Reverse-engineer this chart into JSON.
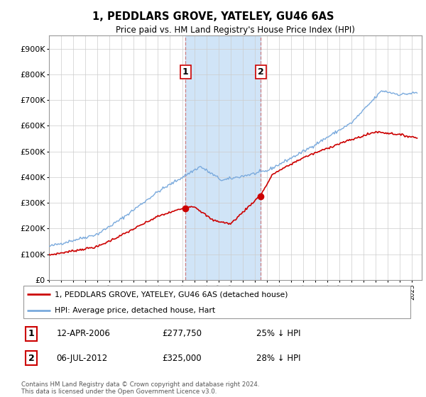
{
  "title": "1, PEDDLARS GROVE, YATELEY, GU46 6AS",
  "subtitle": "Price paid vs. HM Land Registry's House Price Index (HPI)",
  "ylabel_ticks": [
    "£0",
    "£100K",
    "£200K",
    "£300K",
    "£400K",
    "£500K",
    "£600K",
    "£700K",
    "£800K",
    "£900K"
  ],
  "ytick_values": [
    0,
    100000,
    200000,
    300000,
    400000,
    500000,
    600000,
    700000,
    800000,
    900000
  ],
  "ylim": [
    0,
    950000
  ],
  "xlim_start": 1995.0,
  "xlim_end": 2025.8,
  "sale1_date": 2006.28,
  "sale1_price": 277750,
  "sale2_date": 2012.5,
  "sale2_price": 325000,
  "shade_color": "#d0e4f7",
  "red_line_color": "#cc0000",
  "blue_line_color": "#7aaadd",
  "marker_color": "#cc0000",
  "legend_entries": [
    "1, PEDDLARS GROVE, YATELEY, GU46 6AS (detached house)",
    "HPI: Average price, detached house, Hart"
  ],
  "table_rows": [
    [
      "1",
      "12-APR-2006",
      "£277,750",
      "25% ↓ HPI"
    ],
    [
      "2",
      "06-JUL-2012",
      "£325,000",
      "28% ↓ HPI"
    ]
  ],
  "footnote": "Contains HM Land Registry data © Crown copyright and database right 2024.\nThis data is licensed under the Open Government Licence v3.0.",
  "grid_color": "#cccccc"
}
